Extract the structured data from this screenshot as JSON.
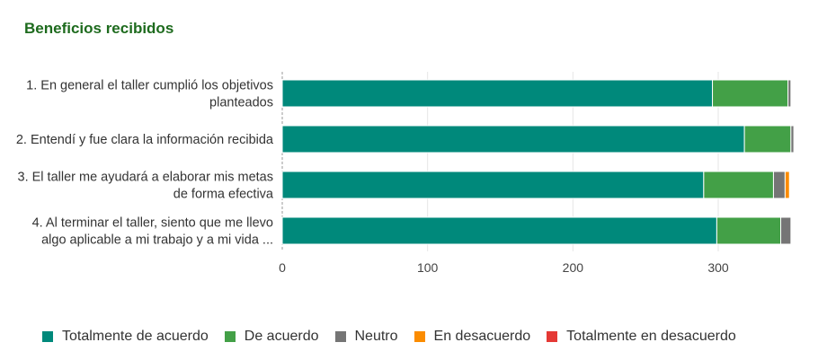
{
  "chart_data": {
    "type": "bar",
    "orientation": "horizontal",
    "stacked": true,
    "title": "Beneficios recibidos",
    "categories": [
      [
        "1. En general el taller cumplió los objetivos",
        "planteados"
      ],
      [
        "2. Entendí y fue clara la información recibida"
      ],
      [
        "3. El taller me ayudará a elaborar mis metas",
        "de forma efectiva"
      ],
      [
        "4. Al terminar el taller, siento que me llevo",
        "algo aplicable a mi trabajo y a mi vida ..."
      ]
    ],
    "series": [
      {
        "name": "Totalmente de acuerdo",
        "color": "#00897b",
        "values": [
          296,
          318,
          290,
          299
        ]
      },
      {
        "name": "De acuerdo",
        "color": "#43a047",
        "values": [
          52,
          32,
          48,
          44
        ]
      },
      {
        "name": "Neutro",
        "color": "#757575",
        "values": [
          2,
          2,
          8,
          7
        ]
      },
      {
        "name": "En desacuerdo",
        "color": "#fb8c00",
        "values": [
          0,
          0,
          3,
          0
        ]
      },
      {
        "name": "Totalmente en desacuerdo",
        "color": "#e53935",
        "values": [
          0,
          0,
          0,
          0
        ]
      }
    ],
    "xlim": [
      0,
      350
    ],
    "xticks": [
      "0",
      "100",
      "200",
      "300"
    ],
    "grid": true,
    "legend": "bottom"
  }
}
